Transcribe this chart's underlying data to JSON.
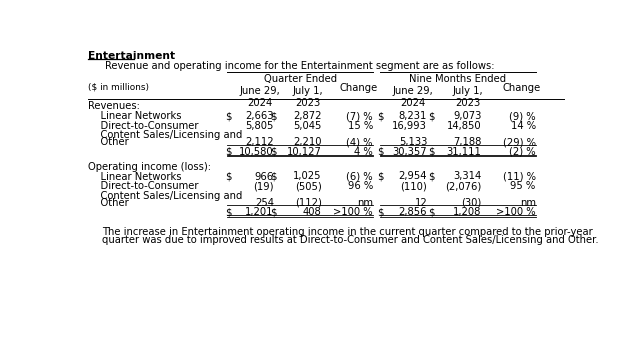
{
  "title": "Entertainment",
  "subtitle": "Revenue and operating income for the Entertainment segment are as follows:",
  "header1": "Quarter Ended",
  "header2": "Nine Months Ended",
  "unit_label": "($ in millions)",
  "sections": [
    {
      "label": "Revenues:",
      "rows": [
        {
          "label": "    Linear Networks",
          "q_2024_dollar": true,
          "q_2024": "2,663",
          "q_2023_dollar": true,
          "q_2023": "2,872",
          "q_change": "(7) %",
          "nm_2024_dollar": true,
          "nm_2024": "8,231",
          "nm_2023_dollar": true,
          "nm_2023": "9,073",
          "nm_change": "(9) %",
          "multiline": false,
          "total": false,
          "double_underline": false
        },
        {
          "label": "    Direct-to-Consumer",
          "q_2024_dollar": false,
          "q_2024": "5,805",
          "q_2023_dollar": false,
          "q_2023": "5,045",
          "q_change": "15 %",
          "nm_2024_dollar": false,
          "nm_2024": "16,993",
          "nm_2023_dollar": false,
          "nm_2023": "14,850",
          "nm_change": "14 %",
          "multiline": false,
          "total": false,
          "double_underline": false
        },
        {
          "label": "    Content Sales/Licensing and",
          "label2": "    Other",
          "q_2024_dollar": false,
          "q_2024": "2,112",
          "q_2023_dollar": false,
          "q_2023": "2,210",
          "q_change": "(4) %",
          "nm_2024_dollar": false,
          "nm_2024": "5,133",
          "nm_2023_dollar": false,
          "nm_2023": "7,188",
          "nm_change": "(29) %",
          "multiline": true,
          "total": false,
          "double_underline": false
        },
        {
          "label": "",
          "label2": "",
          "q_2024_dollar": true,
          "q_2024": "10,580",
          "q_2023_dollar": true,
          "q_2023": "10,127",
          "q_change": "4 %",
          "nm_2024_dollar": true,
          "nm_2024": "30,357",
          "nm_2023_dollar": true,
          "nm_2023": "31,111",
          "nm_change": "(2) %",
          "multiline": false,
          "total": true,
          "double_underline": true
        }
      ]
    },
    {
      "label": "Operating income (loss):",
      "rows": [
        {
          "label": "    Linear Networks",
          "q_2024_dollar": true,
          "q_2024": "966",
          "q_2023_dollar": true,
          "q_2023": "1,025",
          "q_change": "(6) %",
          "nm_2024_dollar": true,
          "nm_2024": "2,954",
          "nm_2023_dollar": true,
          "nm_2023": "3,314",
          "nm_change": "(11) %",
          "multiline": false,
          "total": false,
          "double_underline": false
        },
        {
          "label": "    Direct-to-Consumer",
          "q_2024_dollar": false,
          "q_2024": "(19)",
          "q_2023_dollar": false,
          "q_2023": "(505)",
          "q_change": "96 %",
          "nm_2024_dollar": false,
          "nm_2024": "(110)",
          "nm_2023_dollar": false,
          "nm_2023": "(2,076)",
          "nm_change": "95 %",
          "multiline": false,
          "total": false,
          "double_underline": false
        },
        {
          "label": "    Content Sales/Licensing and",
          "label2": "    Other",
          "q_2024_dollar": false,
          "q_2024": "254",
          "q_2023_dollar": false,
          "q_2023": "(112)",
          "q_change": "nm",
          "nm_2024_dollar": false,
          "nm_2024": "12",
          "nm_2023_dollar": false,
          "nm_2023": "(30)",
          "nm_change": "nm",
          "multiline": true,
          "total": false,
          "double_underline": false
        },
        {
          "label": "",
          "label2": "",
          "q_2024_dollar": true,
          "q_2024": "1,201",
          "q_2023_dollar": true,
          "q_2023": "408",
          "q_change": ">100 %",
          "nm_2024_dollar": true,
          "nm_2024": "2,856",
          "nm_2023_dollar": true,
          "nm_2023": "1,208",
          "nm_change": ">100 %",
          "multiline": false,
          "total": true,
          "double_underline": true
        }
      ]
    }
  ],
  "footnote_line1": "The increase in Entertainment operating income in the current quarter compared to the prior-year",
  "footnote_line2": "quarter was due to improved results at Direct-to-Consumer and Content Sales/Licensing and Other.",
  "bg_color": "#ffffff",
  "text_color": "#000000",
  "font_size": 7.2,
  "col_x": {
    "q_dollar": 196,
    "q_2024": 232,
    "q_dollar2": 255,
    "q_2023": 294,
    "q_change": 350,
    "nm_dollar": 393,
    "nm_2024": 430,
    "nm_dollar2": 458,
    "nm_2023": 500,
    "nm_change": 560
  }
}
